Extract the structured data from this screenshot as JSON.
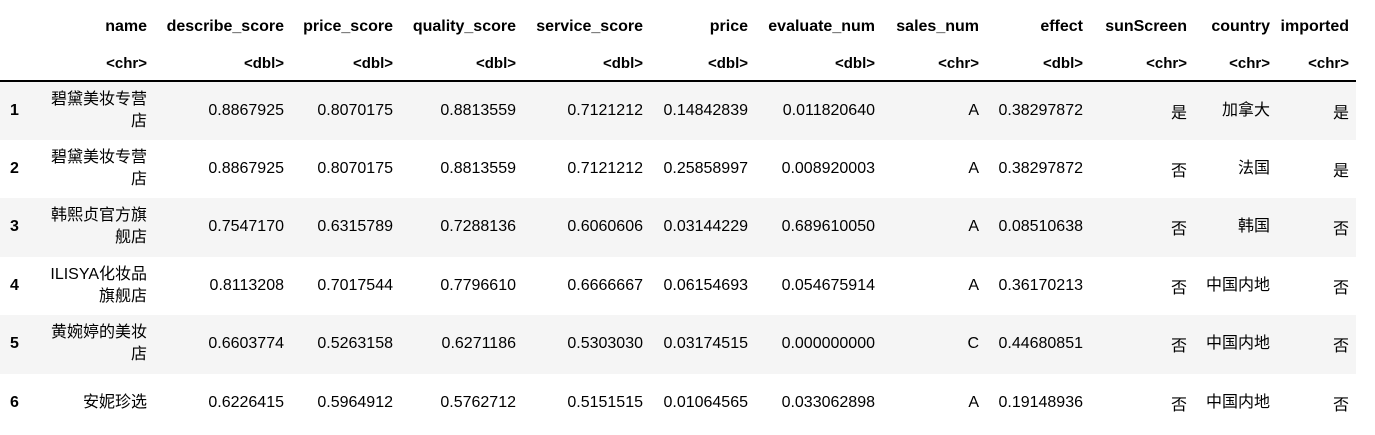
{
  "columns": [
    {
      "name": "",
      "type": ""
    },
    {
      "name": "name",
      "type": "<chr>"
    },
    {
      "name": "describe_score",
      "type": "<dbl>"
    },
    {
      "name": "price_score",
      "type": "<dbl>"
    },
    {
      "name": "quality_score",
      "type": "<dbl>"
    },
    {
      "name": "service_score",
      "type": "<dbl>"
    },
    {
      "name": "price",
      "type": "<dbl>"
    },
    {
      "name": "evaluate_num",
      "type": "<dbl>"
    },
    {
      "name": "sales_num",
      "type": "<chr>"
    },
    {
      "name": "effect",
      "type": "<dbl>"
    },
    {
      "name": "sunScreen",
      "type": "<chr>"
    },
    {
      "name": "country",
      "type": "<chr>"
    },
    {
      "name": "imported",
      "type": "<chr>"
    }
  ],
  "rows": [
    [
      "1",
      "碧黛美妆专营店",
      "0.8867925",
      "0.8070175",
      "0.8813559",
      "0.7121212",
      "0.14842839",
      "0.011820640",
      "A",
      "0.38297872",
      "是",
      "加拿大",
      "是"
    ],
    [
      "2",
      "碧黛美妆专营店",
      "0.8867925",
      "0.8070175",
      "0.8813559",
      "0.7121212",
      "0.25858997",
      "0.008920003",
      "A",
      "0.38297872",
      "否",
      "法国",
      "是"
    ],
    [
      "3",
      "韩熙贞官方旗舰店",
      "0.7547170",
      "0.6315789",
      "0.7288136",
      "0.6060606",
      "0.03144229",
      "0.689610050",
      "A",
      "0.08510638",
      "否",
      "韩国",
      "否"
    ],
    [
      "4",
      "ILISYA化妆品旗舰店",
      "0.8113208",
      "0.7017544",
      "0.7796610",
      "0.6666667",
      "0.06154693",
      "0.054675914",
      "A",
      "0.36170213",
      "否",
      "中国内地",
      "否"
    ],
    [
      "5",
      "黄婉婷的美妆店",
      "0.6603774",
      "0.5263158",
      "0.6271186",
      "0.5303030",
      "0.03174515",
      "0.000000000",
      "C",
      "0.44680851",
      "否",
      "中国内地",
      "否"
    ],
    [
      "6",
      "安妮珍选",
      "0.6226415",
      "0.5964912",
      "0.5762712",
      "0.5151515",
      "0.01064565",
      "0.033062898",
      "A",
      "0.19148936",
      "否",
      "中国内地",
      "否"
    ]
  ]
}
